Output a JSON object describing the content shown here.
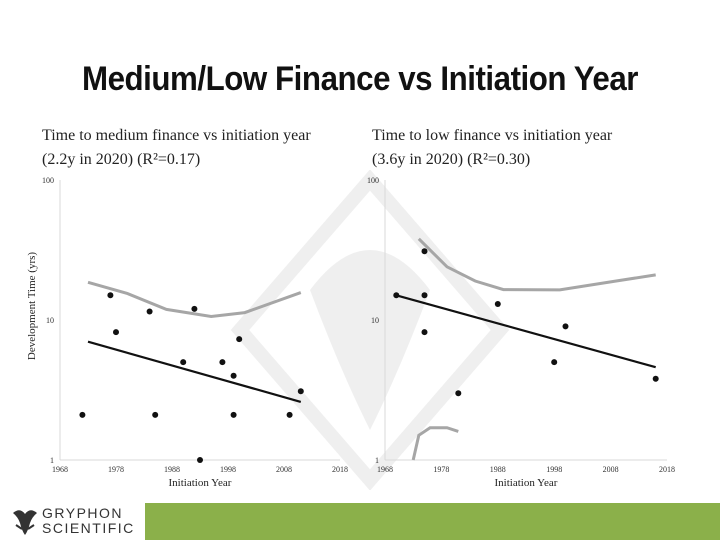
{
  "title": "Medium/Low Finance vs Initiation Year",
  "shared_ylabel": "Development Time (yrs)",
  "logo": {
    "line1": "GRYPHON",
    "line2": "SCIENTIFIC"
  },
  "colors": {
    "points": "#111111",
    "trend": "#111111",
    "bound": "#a6a6a6",
    "footer": "#8bb04a"
  },
  "chart_data": [
    {
      "type": "scatter",
      "title": [
        "Time to medium finance vs initiation year",
        "(2.2y in 2020) (R²=0.17)"
      ],
      "xlabel": "Initiation Year",
      "ylabel": "Development Time (yrs)",
      "xlim": [
        1968,
        2018
      ],
      "ylim": [
        1,
        100
      ],
      "yscale": "log",
      "xticks": [
        "1968",
        "1978",
        "1988",
        "1998",
        "2008",
        "2018"
      ],
      "yticks": [
        "1",
        "10",
        "100"
      ],
      "grid": false,
      "points": [
        {
          "x": 1972,
          "y": 2.1
        },
        {
          "x": 1977,
          "y": 15.0
        },
        {
          "x": 1978,
          "y": 8.2
        },
        {
          "x": 1984,
          "y": 11.5
        },
        {
          "x": 1985,
          "y": 2.1
        },
        {
          "x": 1990,
          "y": 5.0
        },
        {
          "x": 1992,
          "y": 12.0
        },
        {
          "x": 1993,
          "y": 1.0
        },
        {
          "x": 1997,
          "y": 5.0
        },
        {
          "x": 1999,
          "y": 4.0
        },
        {
          "x": 1999,
          "y": 2.1
        },
        {
          "x": 2000,
          "y": 7.3
        },
        {
          "x": 2009,
          "y": 2.1
        },
        {
          "x": 2011,
          "y": 3.1
        }
      ],
      "trend": [
        {
          "x": 1973,
          "y": 7.0
        },
        {
          "x": 2011,
          "y": 2.6
        }
      ],
      "bound_upper": [
        {
          "x": 1973,
          "y": 18.6
        },
        {
          "x": 1980,
          "y": 15.5
        },
        {
          "x": 1987,
          "y": 11.9
        },
        {
          "x": 1995,
          "y": 10.6
        },
        {
          "x": 2001,
          "y": 11.3
        },
        {
          "x": 2011,
          "y": 15.7
        }
      ],
      "bound_lower": []
    },
    {
      "type": "scatter",
      "title": [
        "Time to low finance vs initiation year",
        "(3.6y in 2020) (R²=0.30)"
      ],
      "xlabel": "Initiation Year",
      "ylabel": "",
      "xlim": [
        1968,
        2018
      ],
      "ylim": [
        1,
        100
      ],
      "yscale": "log",
      "xticks": [
        "1968",
        "1978",
        "1988",
        "1998",
        "2008",
        "2018"
      ],
      "yticks": [
        "1",
        "10",
        "100"
      ],
      "grid": false,
      "points": [
        {
          "x": 1975,
          "y": 31.0
        },
        {
          "x": 1970,
          "y": 15.0
        },
        {
          "x": 1975,
          "y": 15.0
        },
        {
          "x": 1975,
          "y": 8.2
        },
        {
          "x": 1988,
          "y": 13.0
        },
        {
          "x": 1981,
          "y": 3.0
        },
        {
          "x": 2000,
          "y": 9.0
        },
        {
          "x": 1998,
          "y": 5.0
        },
        {
          "x": 2016,
          "y": 3.8
        }
      ],
      "trend": [
        {
          "x": 1970,
          "y": 15.0
        },
        {
          "x": 2016,
          "y": 4.6
        }
      ],
      "bound_upper": [
        {
          "x": 1974,
          "y": 38.0
        },
        {
          "x": 1979,
          "y": 24.0
        },
        {
          "x": 1984,
          "y": 19.0
        },
        {
          "x": 1989,
          "y": 16.5
        },
        {
          "x": 1999,
          "y": 16.4
        },
        {
          "x": 2009,
          "y": 19.0
        },
        {
          "x": 2016,
          "y": 21.0
        }
      ],
      "bound_lower": [
        {
          "x": 1973,
          "y": 1.0
        },
        {
          "x": 1974,
          "y": 1.5
        },
        {
          "x": 1976,
          "y": 1.7
        },
        {
          "x": 1979,
          "y": 1.7
        },
        {
          "x": 1981,
          "y": 1.6
        }
      ]
    }
  ]
}
